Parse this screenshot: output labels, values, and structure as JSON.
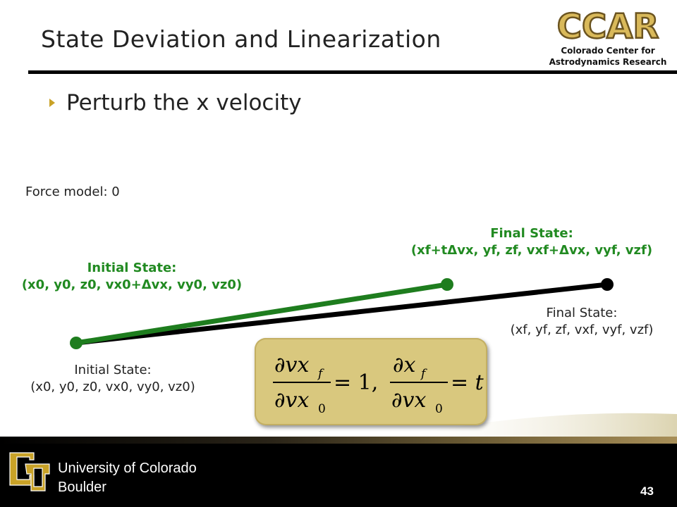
{
  "slide": {
    "title": "State Deviation and Linearization",
    "bullet": "Perturb the x velocity",
    "force_model": "Force model:  0"
  },
  "logo": {
    "acronym": "CCAR",
    "line1": "Colorado Center for",
    "line2": "Astrodynamics Research"
  },
  "labels": {
    "final_perturbed_title": "Final State:",
    "final_perturbed_value": "(xf+tΔvx, yf, zf, vxf+Δvx, vyf, vzf)",
    "initial_perturbed_title": "Initial State:",
    "initial_perturbed_value": "(x0, y0, z0, vx0+Δvx, vy0, vz0)",
    "final_nominal_title": "Final State:",
    "final_nominal_value": "(xf, yf, zf, vxf, vyf, vzf)",
    "initial_nominal_title": "Initial State:",
    "initial_nominal_value": "(x0, y0, z0, vx0, vy0, vz0)"
  },
  "equation": {
    "num1": "∂vx",
    "num1_sub": "f",
    "den1": "∂vx",
    "den1_sub": "0",
    "rhs1": "= 1,",
    "num2": "∂x",
    "num2_sub": "f",
    "den2": "∂vx",
    "den2_sub": "0",
    "rhs2": "= t"
  },
  "footer": {
    "university_line1": "University of Colorado",
    "university_line2": "Boulder",
    "page_number": "43"
  },
  "colors": {
    "perturbed": "#1e7d1e",
    "nominal": "#000000",
    "accent_gold": "#c9a227",
    "equation_box": "#d9c87e"
  }
}
